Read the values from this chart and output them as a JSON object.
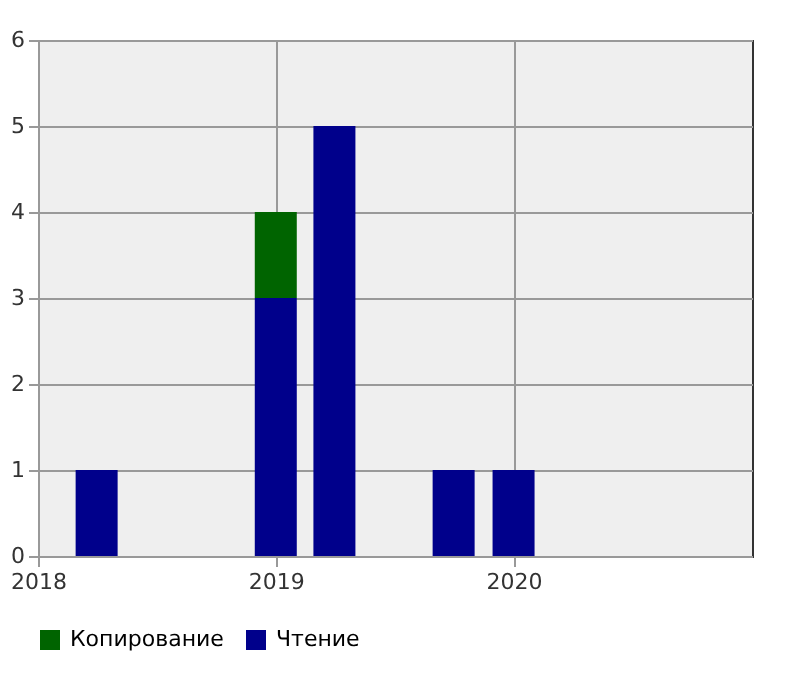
{
  "chart_data": {
    "type": "bar",
    "stacked": true,
    "x": [
      "2018-04",
      "2019-01",
      "2019-04",
      "2019-10",
      "2020-01"
    ],
    "series": [
      {
        "name": "Чтение",
        "color": "#00008b",
        "values": [
          1,
          3,
          5,
          1,
          1
        ]
      },
      {
        "name": "Копирование",
        "color": "#006400",
        "values": [
          null,
          1,
          null,
          null,
          null
        ]
      }
    ],
    "xlim": [
      "2018-01",
      "2021-01"
    ],
    "xticks": [
      {
        "value": "2018",
        "label": "2018"
      },
      {
        "value": "2019",
        "label": "2019"
      },
      {
        "value": "2020",
        "label": "2020"
      }
    ],
    "ylim": [
      0,
      6
    ],
    "yticks": [
      0,
      1,
      2,
      3,
      4,
      5,
      6
    ],
    "grid": true,
    "legend": "bottom"
  }
}
